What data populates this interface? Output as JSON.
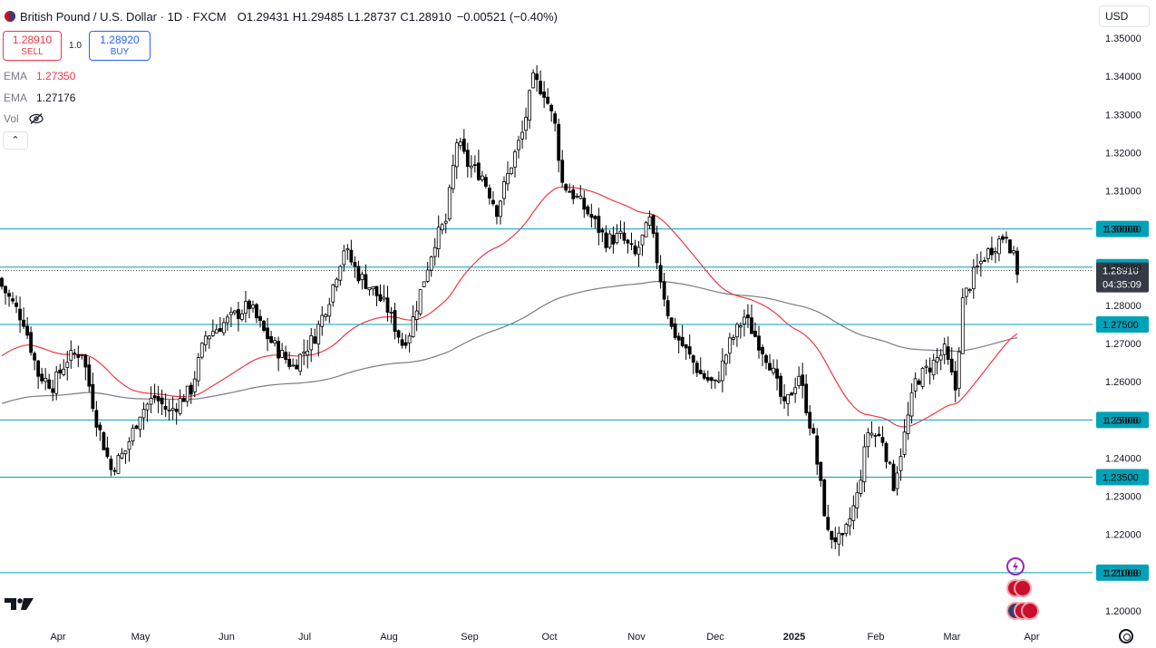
{
  "header": {
    "title": "British Pound / U.S. Dollar · 1D · FXCM",
    "o_label": "O",
    "o": "1.29431",
    "h_label": "H",
    "h": "1.29485",
    "l_label": "L",
    "l": "1.28737",
    "c_label": "C",
    "c": "1.28910",
    "change": "−0.00521 (−0.40%)"
  },
  "trade": {
    "sell_price": "1.28910",
    "sell_label": "SELL",
    "buy_price": "1.28920",
    "buy_label": "BUY",
    "qty": "1.0"
  },
  "indicators": [
    {
      "name": "EMA",
      "value": "1.27350",
      "color": "#f23645"
    },
    {
      "name": "EMA",
      "value": "1.27176",
      "color": "#787b86"
    },
    {
      "name": "Vol",
      "value": ""
    }
  ],
  "currency": "USD",
  "collapse_symbol": "⌃",
  "icons": [
    "tradingview-logo",
    "eye-off-icon",
    "settings-icon",
    "lightning-icon",
    "uk-flag-icon",
    "us-flag-icon"
  ],
  "chart_data": {
    "type": "candlestick",
    "symbol": "GBP/USD",
    "timeframe": "1D",
    "ylim": [
      1.2,
      1.35
    ],
    "y_ticks": [
      "1.35000",
      "1.34000",
      "1.33000",
      "1.32000",
      "1.31000",
      "1.30000",
      "1.29000",
      "1.28000",
      "1.27000",
      "1.26000",
      "1.25000",
      "1.24000",
      "1.23000",
      "1.22000",
      "1.21000",
      "1.20000"
    ],
    "x_ticks": [
      "Apr",
      "May",
      "Jun",
      "Jul",
      "Aug",
      "Sep",
      "Oct",
      "Nov",
      "Dec",
      "2025",
      "Feb",
      "Mar",
      "Apr"
    ],
    "horizontal_lines": [
      {
        "value": 1.3,
        "label": "1.30000"
      },
      {
        "value": 1.29,
        "label": "1.29000"
      },
      {
        "value": 1.275,
        "label": "1.27500"
      },
      {
        "value": 1.25,
        "label": "1.25000"
      },
      {
        "value": 1.235,
        "label": "1.23500"
      },
      {
        "value": 1.21,
        "label": "1.21000"
      }
    ],
    "current_price": {
      "value": 1.2891,
      "label": "1.28910",
      "countdown": "04:35:09"
    },
    "colors": {
      "hline": "#00a2b8",
      "candle": "#000000",
      "ema_fast": "#f23645",
      "ema_slow": "#787b86"
    },
    "path_keypoints": [
      [
        0,
        1.285
      ],
      [
        6,
        1.276
      ],
      [
        10,
        1.262
      ],
      [
        14,
        1.259
      ],
      [
        18,
        1.266
      ],
      [
        22,
        1.268
      ],
      [
        26,
        1.25
      ],
      [
        30,
        1.237
      ],
      [
        34,
        1.242
      ],
      [
        38,
        1.252
      ],
      [
        42,
        1.256
      ],
      [
        46,
        1.252
      ],
      [
        52,
        1.258
      ],
      [
        56,
        1.272
      ],
      [
        62,
        1.276
      ],
      [
        68,
        1.28
      ],
      [
        72,
        1.273
      ],
      [
        76,
        1.268
      ],
      [
        80,
        1.264
      ],
      [
        86,
        1.272
      ],
      [
        90,
        1.282
      ],
      [
        94,
        1.295
      ],
      [
        98,
        1.288
      ],
      [
        102,
        1.284
      ],
      [
        106,
        1.279
      ],
      [
        110,
        1.27
      ],
      [
        112,
        1.273
      ],
      [
        116,
        1.287
      ],
      [
        119,
        1.297
      ],
      [
        122,
        1.302
      ],
      [
        125,
        1.323
      ],
      [
        128,
        1.317
      ],
      [
        132,
        1.314
      ],
      [
        136,
        1.305
      ],
      [
        140,
        1.317
      ],
      [
        143,
        1.325
      ],
      [
        146,
        1.339
      ],
      [
        149,
        1.336
      ],
      [
        152,
        1.327
      ],
      [
        154,
        1.312
      ],
      [
        158,
        1.308
      ],
      [
        162,
        1.303
      ],
      [
        166,
        1.297
      ],
      [
        170,
        1.298
      ],
      [
        174,
        1.293
      ],
      [
        178,
        1.302
      ],
      [
        181,
        1.287
      ],
      [
        184,
        1.274
      ],
      [
        188,
        1.268
      ],
      [
        192,
        1.262
      ],
      [
        196,
        1.259
      ],
      [
        200,
        1.27
      ],
      [
        204,
        1.277
      ],
      [
        207,
        1.272
      ],
      [
        211,
        1.265
      ],
      [
        215,
        1.253
      ],
      [
        219,
        1.262
      ],
      [
        223,
        1.245
      ],
      [
        227,
        1.22
      ],
      [
        231,
        1.218
      ],
      [
        235,
        1.23
      ],
      [
        238,
        1.247
      ],
      [
        242,
        1.245
      ],
      [
        245,
        1.233
      ],
      [
        248,
        1.246
      ],
      [
        251,
        1.26
      ],
      [
        255,
        1.264
      ],
      [
        259,
        1.268
      ],
      [
        262,
        1.258
      ],
      [
        264,
        1.281
      ],
      [
        267,
        1.288
      ],
      [
        270,
        1.293
      ],
      [
        273,
        1.296
      ],
      [
        276,
        1.299
      ],
      [
        279,
        1.2891
      ]
    ]
  }
}
